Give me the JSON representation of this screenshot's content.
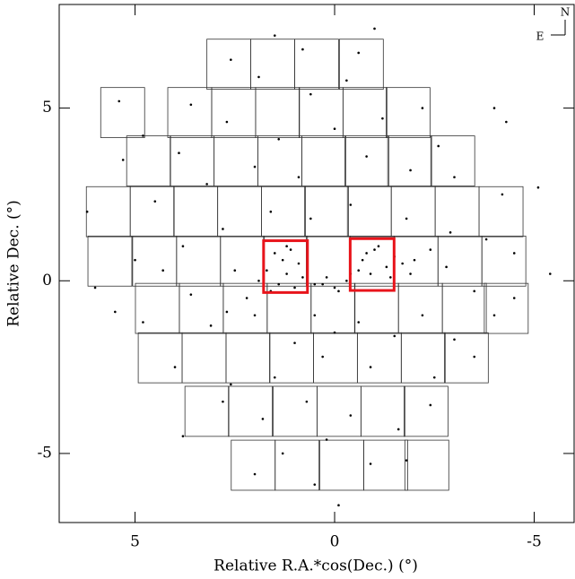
{
  "chart_data": {
    "type": "scatter",
    "xlabel": "Relative R.A.*cos(Dec.) (°)",
    "ylabel": "Relative Dec. (°)",
    "xlim": [
      6.9,
      -6
    ],
    "ylim": [
      -7,
      8
    ],
    "xticks": [
      5,
      0,
      -5
    ],
    "yticks": [
      5,
      0,
      -5
    ],
    "compass": {
      "north": "N",
      "east": "E"
    },
    "color": "#000000",
    "x": [
      1.5,
      1.2,
      0.9,
      1.4,
      1.1,
      1.7,
      1.0,
      1.3,
      0.8,
      1.6,
      1.2,
      1.9,
      2.2,
      2.5,
      -0.7,
      -1.0,
      -1.3,
      -0.9,
      -1.5,
      -0.6,
      -1.1,
      -1.7,
      -1.4,
      -0.8,
      -2.0,
      -2.4,
      -1.9,
      -2.8,
      0.3,
      0.0,
      -0.3,
      0.2,
      -0.1,
      0.5,
      -0.4,
      0.5,
      0.0,
      -0.6,
      1.0,
      2.0,
      2.7,
      3.1,
      -1.5,
      -2.2,
      -3.0,
      0.3,
      -0.9,
      1.5,
      2.6,
      4.0,
      -2.5,
      -3.5,
      0.7,
      -0.4,
      1.8,
      -1.6,
      -2.4,
      2.8,
      0.2,
      1.3,
      -0.9,
      2.0,
      -1.8,
      0.5,
      -0.1,
      3.8,
      4.8,
      -4.0,
      -4.5,
      5.5,
      0.6,
      -0.4,
      1.6,
      2.8,
      -1.8,
      -2.9,
      3.8,
      -3.8,
      5.0,
      -4.5,
      4.5,
      -4.2,
      3.2,
      -3.0,
      2.0,
      0.9,
      -0.8,
      -1.9,
      3.9,
      -2.6,
      1.4,
      0.0,
      -1.2,
      2.7,
      4.8,
      -2.2,
      3.6,
      0.6,
      -0.3,
      1.9,
      2.6,
      0.8,
      -0.6,
      1.5,
      -1.0,
      5.4,
      -4.0,
      -4.3,
      6.2,
      -5.1,
      6.0,
      5.3,
      -3.5,
      3.6,
      4.3,
      -5.4
    ],
    "values": [
      0.8,
      0.2,
      0.5,
      -0.1,
      0.9,
      0.3,
      -0.2,
      0.6,
      0.1,
      -0.3,
      1.0,
      0.0,
      -0.5,
      0.3,
      0.6,
      0.9,
      0.4,
      0.2,
      0.7,
      0.3,
      1.0,
      0.5,
      0.1,
      0.8,
      0.6,
      0.9,
      0.2,
      0.4,
      -0.1,
      -0.2,
      0.0,
      0.1,
      -0.3,
      -0.1,
      0.2,
      -1.0,
      -1.5,
      -1.2,
      -1.8,
      -1.0,
      -0.9,
      -1.3,
      -1.6,
      -1.0,
      -1.7,
      -2.2,
      -2.5,
      -2.8,
      -3.0,
      -2.5,
      -2.8,
      -2.2,
      -3.5,
      -3.9,
      -4.0,
      -4.3,
      -3.6,
      -3.5,
      -4.6,
      -5.0,
      -5.3,
      -5.6,
      -5.2,
      -5.9,
      -6.5,
      -4.5,
      -1.2,
      -1.0,
      -0.5,
      -0.9,
      1.8,
      2.2,
      2.0,
      1.5,
      1.8,
      1.4,
      1.0,
      1.2,
      0.6,
      0.8,
      2.3,
      2.5,
      2.8,
      3.0,
      3.3,
      3.0,
      3.6,
      3.2,
      3.7,
      3.9,
      4.1,
      4.4,
      4.7,
      4.6,
      4.2,
      5.0,
      5.1,
      5.4,
      5.8,
      5.9,
      6.4,
      6.7,
      6.6,
      7.1,
      7.3,
      5.2,
      5.0,
      4.6,
      2.0,
      2.7,
      -0.2,
      3.5,
      -0.3,
      -0.4,
      0.3,
      0.2
    ],
    "fields": {
      "width": 1.1,
      "height": 1.45,
      "rows": [
        {
          "y": 6.27,
          "x": [
            2.65,
            1.55,
            0.45,
            -0.67
          ]
        },
        {
          "y": 4.87,
          "x": [
            5.31,
            3.63,
            2.53,
            1.43,
            0.34,
            -0.76,
            -1.84
          ]
        },
        {
          "y": 3.47,
          "x": [
            4.66,
            3.57,
            2.47,
            1.37,
            0.27,
            -0.81,
            -1.88,
            -2.96
          ]
        },
        {
          "y": 2.0,
          "x": [
            5.67,
            4.57,
            3.48,
            2.38,
            1.28,
            0.2,
            -0.87,
            -1.97,
            -3.07,
            -4.17
          ]
        },
        {
          "y": 0.57,
          "x": [
            5.63,
            4.51,
            3.41,
            2.31,
            1.23,
            0.16,
            -0.94,
            -2.04,
            -3.14,
            -4.24
          ]
        },
        {
          "y": -0.8,
          "x": [
            4.44,
            3.34,
            2.24,
            1.14,
            0.04,
            -1.05,
            -2.15,
            -3.25,
            -4.3
          ]
        },
        {
          "y": -2.23,
          "x": [
            4.37,
            3.27,
            2.17,
            1.08,
            -0.02,
            -1.12,
            -2.22,
            -3.3
          ]
        },
        {
          "y": -3.78,
          "x": [
            3.2,
            2.11,
            0.99,
            -0.11,
            -1.21,
            -2.29
          ]
        },
        {
          "y": -5.34,
          "x": [
            2.04,
            0.94,
            -0.18,
            -1.28,
            -2.31
          ]
        }
      ]
    },
    "highlights": {
      "color": "#e8141b",
      "width": 1.1,
      "height": 1.5,
      "x": [
        1.23,
        -0.94
      ],
      "y": [
        0.41,
        0.47
      ]
    }
  }
}
